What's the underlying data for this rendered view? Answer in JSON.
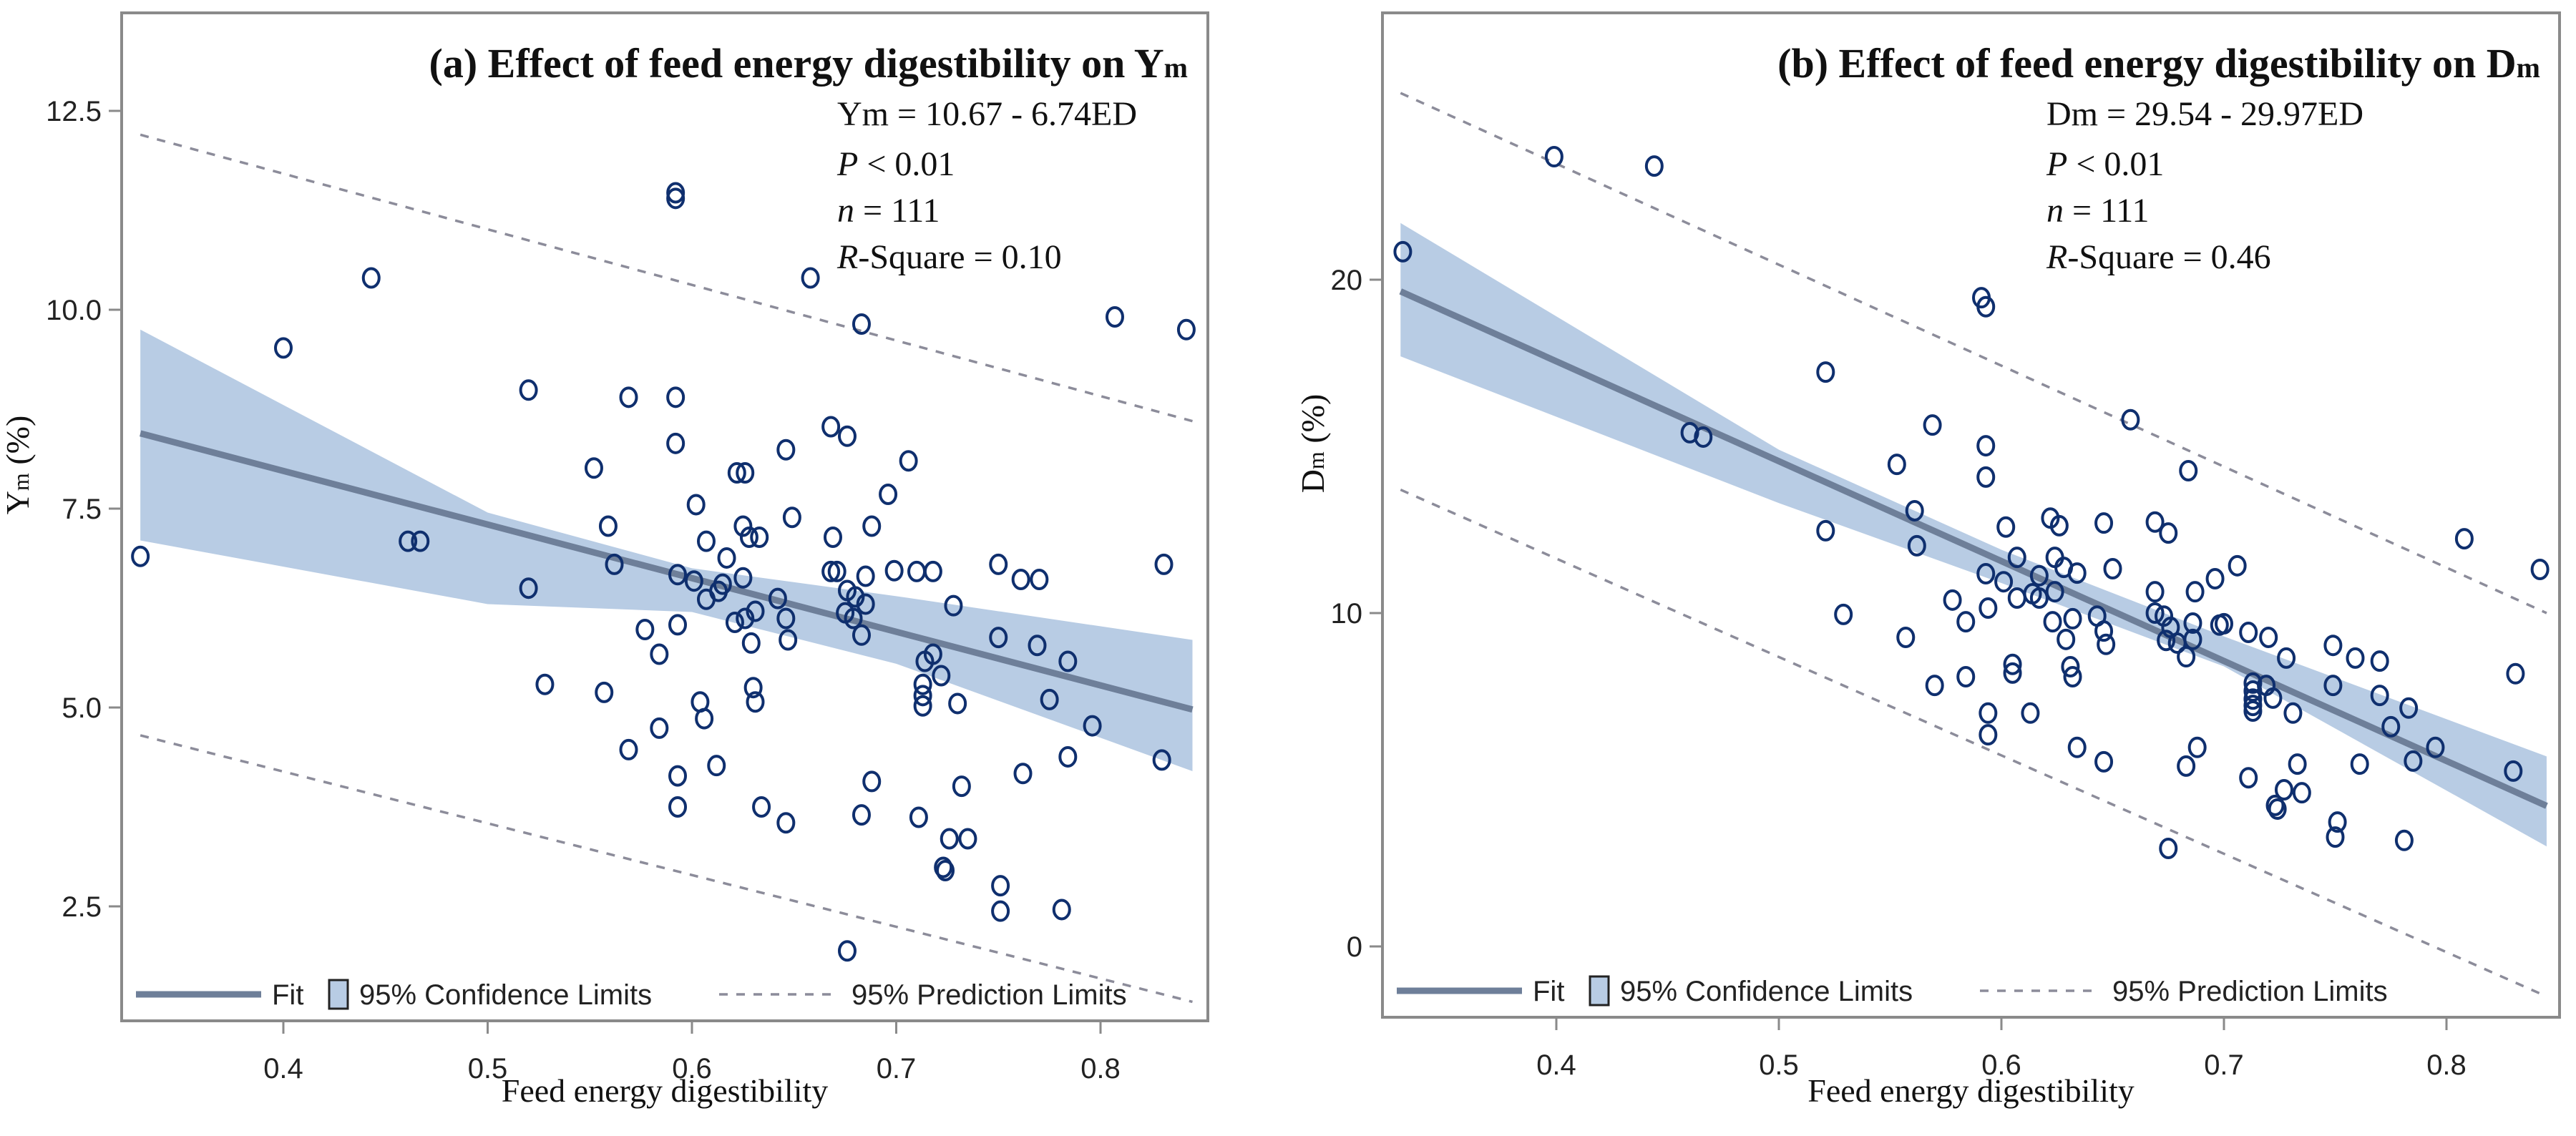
{
  "chart_data": [
    {
      "type": "scatter",
      "title": "(a) Effect of feed energy digestibility on Y",
      "title_sub": "m",
      "xlabel": "Feed energy digestibility",
      "ylabel": "Ym (%)",
      "ylabel_main": "Y",
      "ylabel_sub": "m",
      "ylabel_unit": " (%)",
      "xlim": [
        0.33,
        0.845
      ],
      "ylim": [
        1.4,
        13.3
      ],
      "xticks": [
        0.4,
        0.5,
        0.6,
        0.7,
        0.8
      ],
      "xtick_labels": [
        "0.4",
        "0.5",
        "0.6",
        "0.7",
        "0.8"
      ],
      "yticks": [
        2.5,
        5.0,
        7.5,
        10.0,
        12.5
      ],
      "ytick_labels": [
        "2.5",
        "5.0",
        "7.5",
        "10.0",
        "12.5"
      ],
      "grid": false,
      "stats": {
        "equation": "Ym = 10.67 - 6.74ED",
        "p_label": "P",
        "p_value": " < 0.01",
        "n_label": "n",
        "n_value": " = 111",
        "r_label": "R",
        "r_value": "-Square = 0.10"
      },
      "fit": {
        "intercept": 10.67,
        "slope": -6.74
      },
      "confidence_band": {
        "x": [
          0.33,
          0.5,
          0.6,
          0.7,
          0.845
        ],
        "lower": [
          7.1,
          6.3,
          6.2,
          5.55,
          4.2
        ],
        "upper": [
          9.75,
          7.45,
          6.75,
          6.4,
          5.85
        ]
      },
      "prediction_upper": {
        "x": [
          0.33,
          0.845
        ],
        "y": [
          12.2,
          8.6
        ]
      },
      "prediction_lower": {
        "x": [
          0.33,
          0.845
        ],
        "y": [
          4.65,
          1.3
        ]
      },
      "legend": {
        "fit": "Fit",
        "confidence": "95% Confidence Limits",
        "prediction": "95% Prediction Limits",
        "placement": "bottom"
      },
      "points": [
        [
          0.592,
          11.47
        ],
        [
          0.592,
          11.4
        ],
        [
          0.443,
          10.4
        ],
        [
          0.658,
          10.4
        ],
        [
          0.683,
          9.82
        ],
        [
          0.807,
          9.91
        ],
        [
          0.842,
          9.75
        ],
        [
          0.4,
          9.52
        ],
        [
          0.52,
          8.99
        ],
        [
          0.569,
          8.9
        ],
        [
          0.592,
          8.9
        ],
        [
          0.668,
          8.53
        ],
        [
          0.676,
          8.41
        ],
        [
          0.592,
          8.32
        ],
        [
          0.646,
          8.24
        ],
        [
          0.706,
          8.1
        ],
        [
          0.552,
          8.01
        ],
        [
          0.622,
          7.95
        ],
        [
          0.626,
          7.95
        ],
        [
          0.696,
          7.68
        ],
        [
          0.602,
          7.55
        ],
        [
          0.649,
          7.39
        ],
        [
          0.688,
          7.28
        ],
        [
          0.559,
          7.28
        ],
        [
          0.625,
          7.28
        ],
        [
          0.461,
          7.09
        ],
        [
          0.467,
          7.09
        ],
        [
          0.607,
          7.09
        ],
        [
          0.628,
          7.14
        ],
        [
          0.633,
          7.14
        ],
        [
          0.669,
          7.14
        ],
        [
          0.33,
          6.9
        ],
        [
          0.562,
          6.8
        ],
        [
          0.617,
          6.88
        ],
        [
          0.668,
          6.71
        ],
        [
          0.671,
          6.71
        ],
        [
          0.685,
          6.65
        ],
        [
          0.699,
          6.72
        ],
        [
          0.71,
          6.71
        ],
        [
          0.718,
          6.71
        ],
        [
          0.75,
          6.8
        ],
        [
          0.761,
          6.61
        ],
        [
          0.77,
          6.61
        ],
        [
          0.831,
          6.8
        ],
        [
          0.593,
          6.67
        ],
        [
          0.601,
          6.59
        ],
        [
          0.625,
          6.63
        ],
        [
          0.615,
          6.55
        ],
        [
          0.613,
          6.46
        ],
        [
          0.52,
          6.5
        ],
        [
          0.607,
          6.36
        ],
        [
          0.642,
          6.37
        ],
        [
          0.676,
          6.47
        ],
        [
          0.68,
          6.39
        ],
        [
          0.685,
          6.3
        ],
        [
          0.728,
          6.28
        ],
        [
          0.631,
          6.21
        ],
        [
          0.675,
          6.19
        ],
        [
          0.626,
          6.12
        ],
        [
          0.621,
          6.07
        ],
        [
          0.646,
          6.12
        ],
        [
          0.679,
          6.12
        ],
        [
          0.577,
          5.98
        ],
        [
          0.593,
          6.04
        ],
        [
          0.683,
          5.91
        ],
        [
          0.629,
          5.81
        ],
        [
          0.647,
          5.85
        ],
        [
          0.75,
          5.88
        ],
        [
          0.769,
          5.78
        ],
        [
          0.584,
          5.67
        ],
        [
          0.718,
          5.67
        ],
        [
          0.714,
          5.58
        ],
        [
          0.784,
          5.58
        ],
        [
          0.722,
          5.4
        ],
        [
          0.713,
          5.29
        ],
        [
          0.528,
          5.29
        ],
        [
          0.63,
          5.25
        ],
        [
          0.557,
          5.19
        ],
        [
          0.713,
          5.15
        ],
        [
          0.775,
          5.1
        ],
        [
          0.604,
          5.07
        ],
        [
          0.631,
          5.07
        ],
        [
          0.73,
          5.05
        ],
        [
          0.713,
          5.02
        ],
        [
          0.606,
          4.86
        ],
        [
          0.796,
          4.77
        ],
        [
          0.584,
          4.74
        ],
        [
          0.569,
          4.47
        ],
        [
          0.784,
          4.38
        ],
        [
          0.83,
          4.34
        ],
        [
          0.612,
          4.27
        ],
        [
          0.762,
          4.17
        ],
        [
          0.593,
          4.14
        ],
        [
          0.688,
          4.07
        ],
        [
          0.732,
          4.01
        ],
        [
          0.593,
          3.75
        ],
        [
          0.634,
          3.75
        ],
        [
          0.683,
          3.65
        ],
        [
          0.711,
          3.62
        ],
        [
          0.646,
          3.55
        ],
        [
          0.726,
          3.35
        ],
        [
          0.735,
          3.35
        ],
        [
          0.723,
          2.99
        ],
        [
          0.724,
          2.95
        ],
        [
          0.751,
          2.76
        ],
        [
          0.751,
          2.44
        ],
        [
          0.781,
          2.46
        ],
        [
          0.676,
          1.94
        ]
      ]
    },
    {
      "type": "scatter",
      "title": "(b) Effect of feed energy digestibility on D",
      "title_sub": "m",
      "xlabel": "Feed energy digestibility",
      "ylabel": "Dm (%)",
      "ylabel_main": "D",
      "ylabel_sub": "m",
      "ylabel_unit": " (%)",
      "xlim": [
        0.33,
        0.845
      ],
      "ylim": [
        -2.1,
        26.0
      ],
      "xticks": [
        0.4,
        0.5,
        0.6,
        0.7,
        0.8
      ],
      "xtick_labels": [
        "0.4",
        "0.5",
        "0.6",
        "0.7",
        "0.8"
      ],
      "yticks": [
        0,
        10,
        20
      ],
      "ytick_labels": [
        "0",
        "10",
        "20"
      ],
      "grid": false,
      "stats": {
        "equation": "Dm = 29.54 - 29.97ED",
        "p_label": "P",
        "p_value": " < 0.01",
        "n_label": "n",
        "n_value": " = 111",
        "r_label": "R",
        "r_value": "-Square = 0.46"
      },
      "fit": {
        "intercept": 29.54,
        "slope": -29.97
      },
      "confidence_band": {
        "x": [
          0.33,
          0.5,
          0.6,
          0.7,
          0.845
        ],
        "lower": [
          17.7,
          13.3,
          10.9,
          8.4,
          3.0
        ],
        "upper": [
          21.7,
          14.9,
          11.9,
          9.3,
          5.7
        ]
      },
      "prediction_upper": {
        "x": [
          0.33,
          0.845
        ],
        "y": [
          25.6,
          10.0
        ]
      },
      "prediction_lower": {
        "x": [
          0.33,
          0.845
        ],
        "y": [
          13.7,
          -1.5
        ]
      },
      "legend": {
        "fit": "Fit",
        "confidence": "95% Confidence Limits",
        "prediction": "95% Prediction Limits",
        "placement": "bottom"
      },
      "points": [
        [
          0.331,
          20.84
        ],
        [
          0.399,
          23.69
        ],
        [
          0.444,
          23.41
        ],
        [
          0.591,
          19.46
        ],
        [
          0.593,
          19.19
        ],
        [
          0.521,
          17.23
        ],
        [
          0.658,
          15.8
        ],
        [
          0.46,
          15.41
        ],
        [
          0.466,
          15.28
        ],
        [
          0.569,
          15.64
        ],
        [
          0.593,
          15.02
        ],
        [
          0.553,
          14.46
        ],
        [
          0.593,
          14.08
        ],
        [
          0.684,
          14.27
        ],
        [
          0.561,
          13.07
        ],
        [
          0.521,
          12.47
        ],
        [
          0.562,
          12.02
        ],
        [
          0.602,
          12.58
        ],
        [
          0.622,
          12.85
        ],
        [
          0.626,
          12.62
        ],
        [
          0.646,
          12.7
        ],
        [
          0.669,
          12.73
        ],
        [
          0.675,
          12.4
        ],
        [
          0.808,
          12.23
        ],
        [
          0.842,
          11.31
        ],
        [
          0.607,
          11.67
        ],
        [
          0.624,
          11.67
        ],
        [
          0.628,
          11.37
        ],
        [
          0.634,
          11.2
        ],
        [
          0.65,
          11.33
        ],
        [
          0.706,
          11.42
        ],
        [
          0.593,
          11.18
        ],
        [
          0.617,
          11.12
        ],
        [
          0.601,
          10.94
        ],
        [
          0.696,
          11.03
        ],
        [
          0.614,
          10.58
        ],
        [
          0.617,
          10.45
        ],
        [
          0.624,
          10.64
        ],
        [
          0.607,
          10.45
        ],
        [
          0.669,
          10.64
        ],
        [
          0.687,
          10.64
        ],
        [
          0.578,
          10.39
        ],
        [
          0.594,
          10.15
        ],
        [
          0.529,
          9.96
        ],
        [
          0.669,
          10.0
        ],
        [
          0.673,
          9.91
        ],
        [
          0.643,
          9.91
        ],
        [
          0.623,
          9.74
        ],
        [
          0.632,
          9.83
        ],
        [
          0.584,
          9.74
        ],
        [
          0.686,
          9.7
        ],
        [
          0.698,
          9.64
        ],
        [
          0.7,
          9.68
        ],
        [
          0.676,
          9.57
        ],
        [
          0.646,
          9.46
        ],
        [
          0.711,
          9.42
        ],
        [
          0.72,
          9.27
        ],
        [
          0.557,
          9.27
        ],
        [
          0.629,
          9.21
        ],
        [
          0.674,
          9.18
        ],
        [
          0.679,
          9.1
        ],
        [
          0.686,
          9.21
        ],
        [
          0.647,
          9.06
        ],
        [
          0.749,
          9.03
        ],
        [
          0.683,
          8.69
        ],
        [
          0.728,
          8.65
        ],
        [
          0.759,
          8.65
        ],
        [
          0.77,
          8.56
        ],
        [
          0.605,
          8.46
        ],
        [
          0.605,
          8.2
        ],
        [
          0.631,
          8.39
        ],
        [
          0.632,
          8.09
        ],
        [
          0.584,
          8.09
        ],
        [
          0.831,
          8.18
        ],
        [
          0.57,
          7.83
        ],
        [
          0.713,
          7.9
        ],
        [
          0.719,
          7.83
        ],
        [
          0.749,
          7.83
        ],
        [
          0.713,
          7.66
        ],
        [
          0.713,
          7.42
        ],
        [
          0.713,
          7.23
        ],
        [
          0.713,
          7.06
        ],
        [
          0.722,
          7.45
        ],
        [
          0.77,
          7.53
        ],
        [
          0.783,
          7.15
        ],
        [
          0.731,
          7.0
        ],
        [
          0.594,
          7.0
        ],
        [
          0.613,
          7.0
        ],
        [
          0.775,
          6.59
        ],
        [
          0.594,
          6.35
        ],
        [
          0.688,
          5.97
        ],
        [
          0.634,
          5.97
        ],
        [
          0.795,
          5.97
        ],
        [
          0.646,
          5.54
        ],
        [
          0.785,
          5.56
        ],
        [
          0.683,
          5.41
        ],
        [
          0.733,
          5.47
        ],
        [
          0.761,
          5.47
        ],
        [
          0.83,
          5.26
        ],
        [
          0.711,
          5.06
        ],
        [
          0.727,
          4.7
        ],
        [
          0.735,
          4.61
        ],
        [
          0.723,
          4.23
        ],
        [
          0.724,
          4.12
        ],
        [
          0.751,
          3.73
        ],
        [
          0.75,
          3.28
        ],
        [
          0.781,
          3.18
        ],
        [
          0.675,
          2.94
        ]
      ]
    }
  ]
}
